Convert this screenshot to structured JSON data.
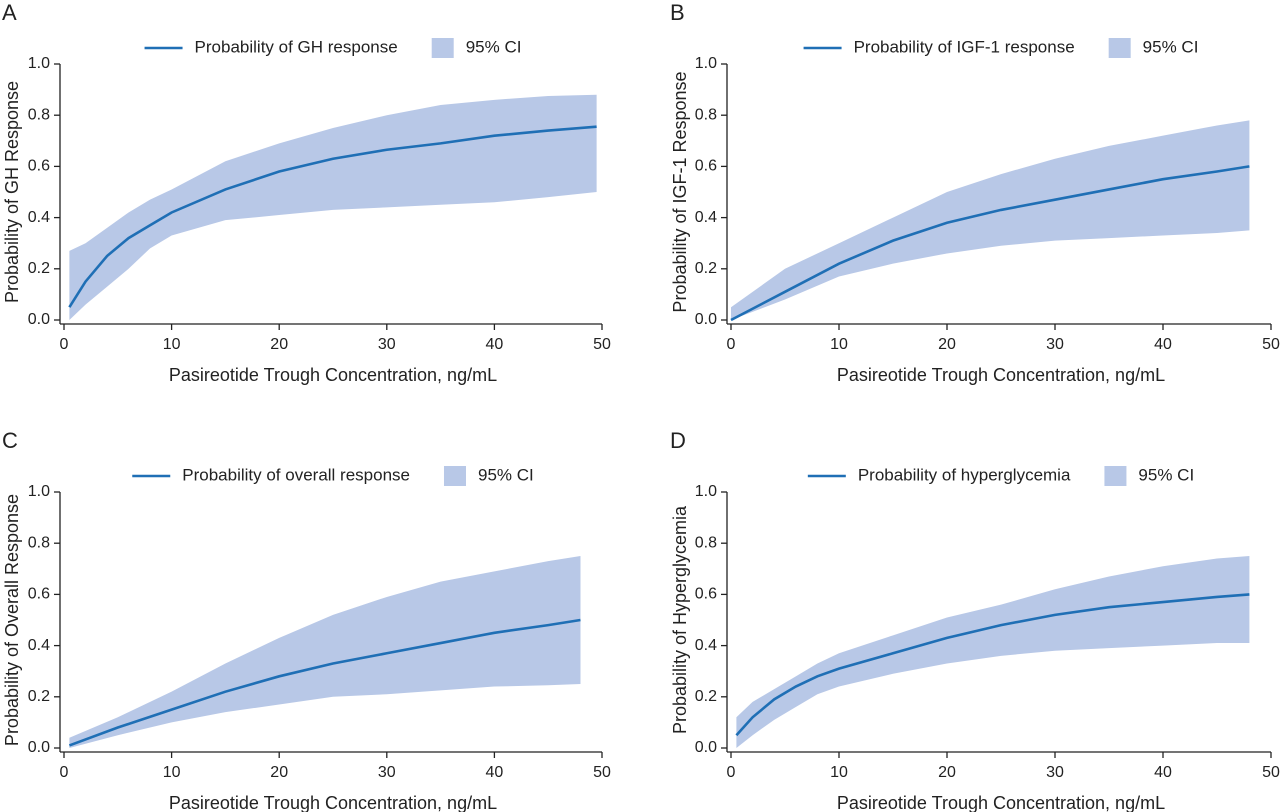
{
  "chart_data": [
    {
      "type": "line",
      "panel_label": "A",
      "xlabel": "Pasireotide Trough Concentration, ng/mL",
      "ylabel": "Probability of GH Response",
      "x": [
        0.5,
        2,
        4,
        6,
        8,
        10,
        15,
        20,
        25,
        30,
        35,
        40,
        45,
        49.5
      ],
      "series": [
        {
          "name": "Probability of GH response",
          "color": "#1f6fb5",
          "values": [
            0.05,
            0.15,
            0.25,
            0.32,
            0.37,
            0.42,
            0.51,
            0.58,
            0.63,
            0.665,
            0.69,
            0.72,
            0.74,
            0.755
          ]
        }
      ],
      "band": {
        "name": "95% CI",
        "color": "#b8c8e7",
        "lower": [
          0.0,
          0.06,
          0.13,
          0.2,
          0.28,
          0.33,
          0.39,
          0.41,
          0.43,
          0.44,
          0.45,
          0.46,
          0.48,
          0.5
        ],
        "upper": [
          0.27,
          0.3,
          0.36,
          0.42,
          0.47,
          0.51,
          0.62,
          0.69,
          0.75,
          0.8,
          0.84,
          0.86,
          0.875,
          0.88
        ]
      },
      "xlim": [
        0,
        50
      ],
      "ylim": [
        0,
        1
      ],
      "xticks": [
        0,
        10,
        20,
        30,
        40,
        50
      ],
      "yticks": [
        {
          "value": 0,
          "label": "0.0"
        },
        0.2,
        0.4,
        0.6,
        0.8,
        {
          "value": 1,
          "label": "1.0"
        }
      ]
    },
    {
      "type": "line",
      "panel_label": "B",
      "xlabel": "Pasireotide Trough Concentration, ng/mL",
      "ylabel": "Probability of IGF-1 Response",
      "x": [
        0,
        5,
        10,
        15,
        20,
        25,
        30,
        35,
        40,
        45,
        48
      ],
      "series": [
        {
          "name": "Probability of IGF-1 response",
          "color": "#1f6fb5",
          "values": [
            0,
            0.11,
            0.22,
            0.31,
            0.38,
            0.43,
            0.47,
            0.51,
            0.55,
            0.58,
            0.6
          ]
        }
      ],
      "band": {
        "name": "95% CI",
        "color": "#b8c8e7",
        "lower": [
          0,
          0.08,
          0.17,
          0.22,
          0.26,
          0.29,
          0.31,
          0.32,
          0.33,
          0.34,
          0.35
        ],
        "upper": [
          0.05,
          0.2,
          0.3,
          0.4,
          0.5,
          0.57,
          0.63,
          0.68,
          0.72,
          0.76,
          0.78
        ]
      },
      "xlim": [
        0,
        50
      ],
      "ylim": [
        0,
        1
      ],
      "xticks": [
        0,
        10,
        20,
        30,
        40,
        50
      ],
      "yticks": [
        {
          "value": 0,
          "label": "0.0"
        },
        0.2,
        0.4,
        0.6,
        0.8,
        {
          "value": 1,
          "label": "1.0"
        }
      ]
    },
    {
      "type": "line",
      "panel_label": "C",
      "xlabel": "Pasireotide Trough Concentration, ng/mL",
      "ylabel": "Probability of Overall Response",
      "x": [
        0.5,
        5,
        10,
        15,
        20,
        25,
        30,
        35,
        40,
        45,
        48
      ],
      "series": [
        {
          "name": "Probability of overall response",
          "color": "#1f6fb5",
          "values": [
            0.01,
            0.08,
            0.15,
            0.22,
            0.28,
            0.33,
            0.37,
            0.41,
            0.45,
            0.48,
            0.5
          ]
        }
      ],
      "band": {
        "name": "95% CI",
        "color": "#b8c8e7",
        "lower": [
          0,
          0.05,
          0.1,
          0.14,
          0.17,
          0.2,
          0.21,
          0.225,
          0.24,
          0.245,
          0.25
        ],
        "upper": [
          0.04,
          0.12,
          0.22,
          0.33,
          0.43,
          0.52,
          0.59,
          0.65,
          0.69,
          0.73,
          0.75
        ]
      },
      "xlim": [
        0,
        50
      ],
      "ylim": [
        0,
        1
      ],
      "xticks": [
        0,
        10,
        20,
        30,
        40,
        50
      ],
      "yticks": [
        {
          "value": 0,
          "label": "0.0"
        },
        0.2,
        0.4,
        0.6,
        0.8,
        {
          "value": 1,
          "label": "1.0"
        }
      ]
    },
    {
      "type": "line",
      "panel_label": "D",
      "xlabel": "Pasireotide Trough Concentration, ng/mL",
      "ylabel": "Probability of Hyperglycemia",
      "x": [
        0.5,
        2,
        4,
        6,
        8,
        10,
        15,
        20,
        25,
        30,
        35,
        40,
        45,
        48
      ],
      "series": [
        {
          "name": "Probability of hyperglycemia",
          "color": "#1f6fb5",
          "values": [
            0.05,
            0.12,
            0.19,
            0.24,
            0.28,
            0.31,
            0.37,
            0.43,
            0.48,
            0.52,
            0.55,
            0.57,
            0.59,
            0.6
          ]
        }
      ],
      "band": {
        "name": "95% CI",
        "color": "#b8c8e7",
        "lower": [
          0,
          0.05,
          0.11,
          0.16,
          0.21,
          0.24,
          0.29,
          0.33,
          0.36,
          0.38,
          0.39,
          0.4,
          0.41,
          0.41
        ],
        "upper": [
          0.12,
          0.18,
          0.23,
          0.28,
          0.33,
          0.37,
          0.44,
          0.51,
          0.56,
          0.62,
          0.67,
          0.71,
          0.74,
          0.75
        ]
      },
      "xlim": [
        0,
        50
      ],
      "ylim": [
        0,
        1
      ],
      "xticks": [
        0,
        10,
        20,
        30,
        40,
        50
      ],
      "yticks": [
        {
          "value": 0,
          "label": "0.0"
        },
        0.2,
        0.4,
        0.6,
        0.8,
        {
          "value": 1,
          "label": "1.0"
        }
      ]
    }
  ]
}
